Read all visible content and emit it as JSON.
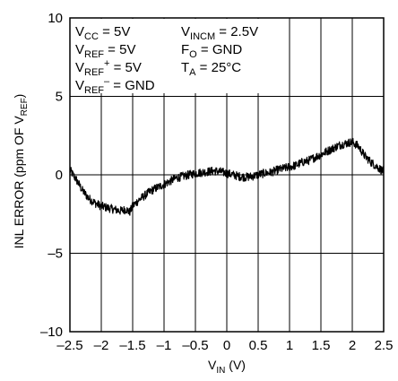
{
  "chart_data": {
    "type": "line",
    "title": "",
    "xlabel": {
      "main": "V",
      "sub": "IN",
      "unit": " (V)"
    },
    "ylabel": {
      "main": "INL ERROR (ppm OF V",
      "sub": "REF",
      "close": ")"
    },
    "xlim": [
      -2.5,
      2.5
    ],
    "ylim": [
      -10,
      10
    ],
    "x_ticks": [
      -2.5,
      -2,
      -1.5,
      -1,
      -0.5,
      0,
      0.5,
      1,
      1.5,
      2,
      2.5
    ],
    "x_tick_labels": [
      "–2.5",
      "–2",
      "–1.5",
      "–1",
      "–0.5",
      "0",
      "0.5",
      "1",
      "1.5",
      "2",
      "2.5"
    ],
    "y_ticks": [
      -10,
      -5,
      0,
      5,
      10
    ],
    "y_tick_labels": [
      "–10",
      "–5",
      "0",
      "5",
      "10"
    ],
    "grid": true,
    "conditions": [
      {
        "main": "V",
        "sub": "CC",
        "sup": "",
        "rest": " = 5V"
      },
      {
        "main": "V",
        "sub": "INCM",
        "sup": "",
        "rest": " = 2.5V"
      },
      {
        "main": "V",
        "sub": "REF",
        "sup": "",
        "rest": " = 5V"
      },
      {
        "main": "F",
        "sub": "O",
        "sup": "",
        "rest": " = GND"
      },
      {
        "main": "V",
        "sub": "REF",
        "sup": "+",
        "rest": " = 5V"
      },
      {
        "main": "T",
        "sub": "A",
        "sup": "",
        "rest": " = 25°C"
      },
      {
        "main": "V",
        "sub": "REF",
        "sup": "–",
        "rest": " = GND"
      }
    ],
    "series": [
      {
        "x": [
          -2.5,
          -2.4,
          -2.3,
          -2.2,
          -2.1,
          -2.0,
          -1.9,
          -1.8,
          -1.7,
          -1.6,
          -1.55,
          -1.5,
          -1.4,
          -1.3,
          -1.2,
          -1.1,
          -1.0,
          -0.9,
          -0.8,
          -0.7,
          -0.6,
          -0.5,
          -0.4,
          -0.3,
          -0.2,
          -0.1,
          0.0,
          0.1,
          0.2,
          0.3,
          0.4,
          0.5,
          0.6,
          0.7,
          0.8,
          0.9,
          1.0,
          1.1,
          1.2,
          1.3,
          1.4,
          1.5,
          1.6,
          1.7,
          1.8,
          1.9,
          2.0,
          2.1,
          2.2,
          2.3,
          2.4,
          2.5
        ],
        "y": [
          0.3,
          -0.3,
          -1.0,
          -1.5,
          -1.8,
          -2.0,
          -2.1,
          -2.2,
          -2.3,
          -2.2,
          -2.4,
          -2.0,
          -1.6,
          -1.3,
          -1.0,
          -0.8,
          -0.6,
          -0.4,
          -0.2,
          -0.1,
          0.0,
          0.1,
          0.15,
          0.2,
          0.25,
          0.2,
          0.1,
          0.0,
          -0.1,
          -0.15,
          -0.1,
          0.0,
          0.1,
          0.15,
          0.3,
          0.4,
          0.5,
          0.6,
          0.8,
          0.9,
          1.1,
          1.3,
          1.5,
          1.7,
          1.9,
          2.0,
          2.1,
          1.8,
          1.2,
          0.8,
          0.5,
          0.2
        ]
      }
    ]
  }
}
